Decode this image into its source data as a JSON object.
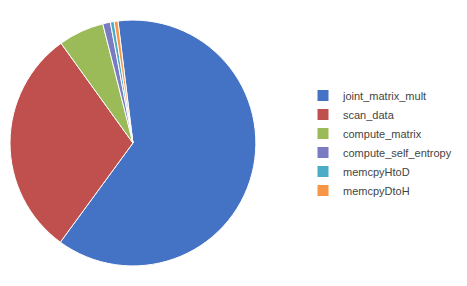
{
  "chart_data": {
    "type": "pie",
    "categories": [
      "joint_matrix_mult",
      "scan_data",
      "compute_matrix",
      "compute_self_entropy",
      "memcpyHtoD",
      "memcpyDtoH"
    ],
    "values": [
      62,
      30,
      6,
      1,
      0.5,
      0.5
    ],
    "colors": [
      "#4472C4",
      "#C0504D",
      "#9BBB59",
      "#7B7BC4",
      "#4BACC6",
      "#F79646"
    ],
    "legend": "right"
  }
}
